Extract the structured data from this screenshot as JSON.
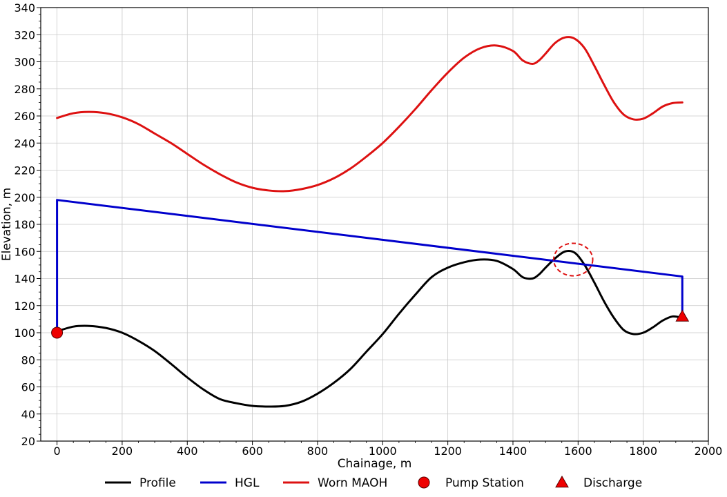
{
  "chart_data": {
    "type": "line",
    "title": "",
    "xlabel": "Chainage, m",
    "ylabel": "Elevation, m",
    "xlim": [
      -50,
      2000
    ],
    "ylim": [
      20,
      340
    ],
    "xticks": [
      0,
      200,
      400,
      600,
      800,
      1000,
      1200,
      1400,
      1600,
      1800,
      2000
    ],
    "yticks": [
      20,
      40,
      60,
      80,
      100,
      120,
      140,
      160,
      180,
      200,
      220,
      240,
      260,
      280,
      300,
      320,
      340
    ],
    "grid": true,
    "legend_position": "bottom",
    "series": [
      {
        "name": "Profile",
        "color": "#000000",
        "x": [
          0,
          50,
          100,
          150,
          200,
          250,
          300,
          350,
          400,
          450,
          500,
          550,
          600,
          650,
          700,
          750,
          800,
          850,
          900,
          950,
          1000,
          1050,
          1100,
          1150,
          1200,
          1250,
          1300,
          1350,
          1400,
          1430,
          1460,
          1480,
          1500,
          1530,
          1560,
          1590,
          1620,
          1650,
          1680,
          1710,
          1740,
          1770,
          1800,
          1830,
          1860,
          1890,
          1920
        ],
        "y": [
          101,
          104.5,
          105,
          103.5,
          100,
          94,
          86.5,
          77,
          67,
          58,
          51,
          48,
          46,
          45.5,
          46,
          49,
          55,
          63,
          73,
          86,
          99,
          114,
          128,
          141,
          148,
          152,
          154,
          153,
          147,
          141,
          140,
          143,
          148,
          155,
          160,
          159,
          150,
          137,
          123,
          111,
          102,
          99,
          100,
          104,
          109,
          112,
          111
        ]
      },
      {
        "name": "HGL",
        "color": "#0000cc",
        "x": [
          0,
          0,
          1920,
          1920
        ],
        "y": [
          100,
          198,
          141.5,
          112
        ]
      },
      {
        "name": "Worn MAOH",
        "color": "#dd1111",
        "x": [
          0,
          50,
          100,
          150,
          200,
          250,
          300,
          350,
          400,
          450,
          500,
          550,
          600,
          650,
          700,
          750,
          800,
          850,
          900,
          950,
          1000,
          1050,
          1100,
          1150,
          1200,
          1250,
          1300,
          1350,
          1400,
          1430,
          1460,
          1480,
          1500,
          1530,
          1560,
          1590,
          1620,
          1650,
          1680,
          1710,
          1740,
          1770,
          1800,
          1830,
          1860,
          1890,
          1920
        ],
        "y": [
          258.5,
          262,
          263,
          262,
          259,
          254,
          247,
          240,
          232,
          224,
          217,
          211,
          207,
          205,
          204.5,
          206,
          209,
          214,
          221,
          230,
          240,
          252,
          265,
          279,
          292,
          303,
          310,
          312,
          308,
          301,
          298.5,
          301,
          306,
          314,
          318,
          317,
          310,
          297,
          283,
          270,
          261,
          257.5,
          258,
          262,
          267,
          269.5,
          270
        ]
      }
    ],
    "markers": [
      {
        "name": "Pump Station",
        "shape": "circle",
        "color": "#ee0000",
        "x": 0,
        "y": 100
      },
      {
        "name": "Discharge",
        "shape": "triangle",
        "color": "#ee0000",
        "x": 1920,
        "y": 112
      }
    ],
    "annotations": [
      {
        "type": "dashed-circle",
        "color": "#dd1111",
        "x": 1585,
        "y": 154,
        "radius_x_units": 60,
        "radius_y_units": 12
      }
    ],
    "legend": [
      "Profile",
      "HGL",
      "Worn MAOH",
      "Pump Station",
      "Discharge"
    ]
  }
}
